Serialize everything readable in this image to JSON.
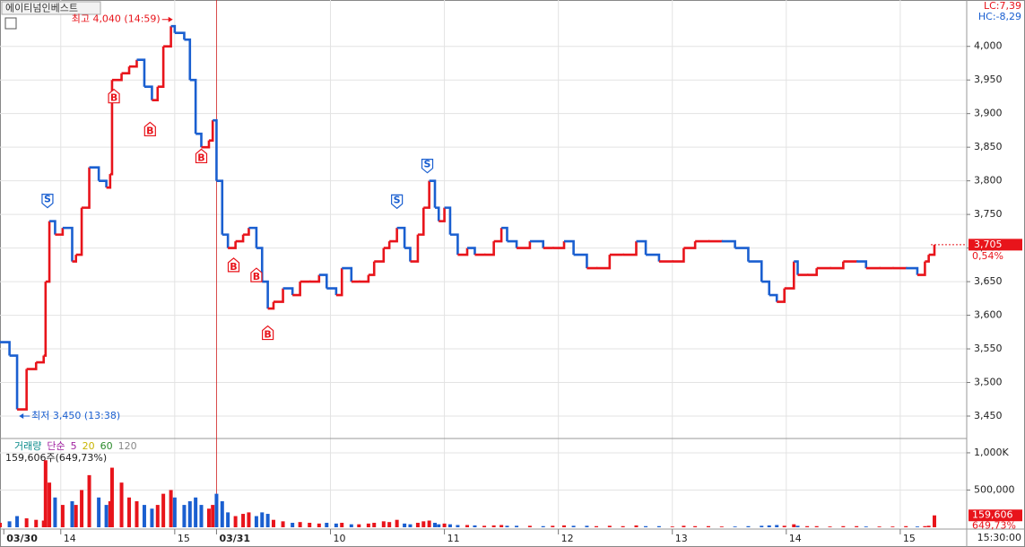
{
  "chart_data": {
    "type": "stock",
    "stock_name": "에이티넘인베스트",
    "lc_label": "LC:7,39",
    "hc_label": "HC:-8,29",
    "up_color": "#e8141b",
    "down_color": "#1a5fd0",
    "xlim": [
      0,
      509
    ],
    "xticks": [
      {
        "value": 2,
        "label": "03/30"
      },
      {
        "value": 32,
        "label": "14"
      },
      {
        "value": 92,
        "label": "15"
      },
      {
        "value": 114,
        "label": "03/31"
      },
      {
        "value": 174,
        "label": "10"
      },
      {
        "value": 234,
        "label": "11"
      },
      {
        "value": 294,
        "label": "12"
      },
      {
        "value": 354,
        "label": "13"
      },
      {
        "value": 414,
        "label": "14"
      },
      {
        "value": 474,
        "label": "15"
      }
    ],
    "time_label": "15:30:00",
    "ylim": [
      3418,
      4069
    ],
    "yticks": [
      {
        "value": 3450,
        "label": "3,450"
      },
      {
        "value": 3500,
        "label": "3,500"
      },
      {
        "value": 3550,
        "label": "3,550"
      },
      {
        "value": 3600,
        "label": "3,600"
      },
      {
        "value": 3650,
        "label": "3,650"
      },
      {
        "value": 3700,
        "label": "3,700"
      },
      {
        "value": 3750,
        "label": "3,750"
      },
      {
        "value": 3800,
        "label": "3,800"
      },
      {
        "value": 3850,
        "label": "3,850"
      },
      {
        "value": 3900,
        "label": "3,900"
      },
      {
        "value": 3950,
        "label": "3,950"
      },
      {
        "value": 4000,
        "label": "4,000"
      }
    ],
    "x": [
      0,
      5,
      9,
      14,
      19,
      23,
      24,
      26,
      29,
      33,
      38,
      40,
      43,
      47,
      52,
      56,
      58,
      59,
      64,
      68,
      72,
      76,
      80,
      83,
      86,
      90,
      92,
      97,
      100,
      103,
      106,
      110,
      112,
      114,
      117,
      120,
      124,
      128,
      131,
      135,
      138,
      141,
      144,
      149,
      154,
      158,
      163,
      168,
      172,
      177,
      180,
      185,
      189,
      194,
      197,
      202,
      205,
      209,
      213,
      216,
      220,
      223,
      226,
      229,
      231,
      234,
      237,
      241,
      246,
      250,
      255,
      260,
      264,
      267,
      272,
      279,
      286,
      291,
      297,
      302,
      309,
      314,
      321,
      328,
      335,
      340,
      347,
      354,
      360,
      366,
      373,
      380,
      387,
      394,
      401,
      405,
      409,
      413,
      418,
      420,
      425,
      430,
      437,
      444,
      451,
      456,
      463,
      470,
      477,
      483,
      487,
      489,
      492
    ],
    "values": [
      3560,
      3540,
      3460,
      3520,
      3530,
      3540,
      3650,
      3740,
      3720,
      3730,
      3680,
      3690,
      3760,
      3820,
      3800,
      3790,
      3810,
      3950,
      3960,
      3970,
      3980,
      3940,
      3920,
      3940,
      4000,
      4030,
      4020,
      4010,
      3950,
      3870,
      3850,
      3860,
      3890,
      3800,
      3720,
      3700,
      3710,
      3720,
      3730,
      3700,
      3650,
      3610,
      3620,
      3640,
      3630,
      3650,
      3650,
      3660,
      3640,
      3630,
      3670,
      3650,
      3650,
      3660,
      3680,
      3700,
      3710,
      3730,
      3700,
      3680,
      3720,
      3760,
      3800,
      3760,
      3740,
      3760,
      3720,
      3690,
      3700,
      3690,
      3690,
      3710,
      3730,
      3710,
      3700,
      3710,
      3700,
      3700,
      3710,
      3690,
      3670,
      3670,
      3690,
      3690,
      3710,
      3690,
      3680,
      3680,
      3700,
      3710,
      3710,
      3710,
      3700,
      3680,
      3650,
      3630,
      3620,
      3640,
      3680,
      3660,
      3660,
      3670,
      3670,
      3680,
      3680,
      3670,
      3670,
      3670,
      3670,
      3660,
      3680,
      3690,
      3705
    ],
    "current": {
      "value": 3705,
      "label": "3,705",
      "change": "0,54%"
    },
    "high": {
      "text": "최고 4,040 (14:59)",
      "x": 91,
      "value": 4040
    },
    "low": {
      "text": "최저 3,450 (13:38)",
      "x": 10,
      "value": 3450
    },
    "signals": [
      {
        "label": "S",
        "x": 25,
        "value": 3760
      },
      {
        "label": "B",
        "x": 60,
        "value": 3936
      },
      {
        "label": "B",
        "x": 79,
        "value": 3887
      },
      {
        "label": "B",
        "x": 106,
        "value": 3847
      },
      {
        "label": "B",
        "x": 123,
        "value": 3685
      },
      {
        "label": "B",
        "x": 135,
        "value": 3670
      },
      {
        "label": "B",
        "x": 141,
        "value": 3584
      },
      {
        "label": "S",
        "x": 209,
        "value": 3759
      },
      {
        "label": "S",
        "x": 225,
        "value": 3812
      }
    ],
    "volume": {
      "legend": [
        "거래량",
        "단순",
        "5",
        "20",
        "60",
        "120"
      ],
      "legend_colors": [
        "#0a8a8a",
        "#a020a0",
        "#a020a0",
        "#c8b400",
        "#2a8a2a",
        "#888888"
      ],
      "summary": "159,606주(649,73%)",
      "ylim": [
        0,
        1180000
      ],
      "yticks": [
        {
          "value": 1000000,
          "label": "1,000K"
        },
        {
          "value": 500000,
          "label": "500,000"
        }
      ],
      "values": [
        60000,
        80000,
        150000,
        120000,
        100000,
        90000,
        900000,
        600000,
        400000,
        300000,
        350000,
        300000,
        500000,
        700000,
        400000,
        300000,
        350000,
        800000,
        600000,
        400000,
        350000,
        300000,
        250000,
        300000,
        450000,
        500000,
        400000,
        300000,
        350000,
        400000,
        300000,
        250000,
        300000,
        450000,
        350000,
        200000,
        150000,
        180000,
        200000,
        150000,
        200000,
        180000,
        100000,
        80000,
        60000,
        70000,
        60000,
        50000,
        60000,
        50000,
        60000,
        40000,
        40000,
        50000,
        60000,
        80000,
        70000,
        100000,
        50000,
        40000,
        60000,
        80000,
        90000,
        60000,
        40000,
        50000,
        40000,
        30000,
        30000,
        25000,
        20000,
        25000,
        30000,
        20000,
        20000,
        20000,
        15000,
        20000,
        25000,
        20000,
        20000,
        15000,
        20000,
        15000,
        25000,
        15000,
        15000,
        10000,
        20000,
        15000,
        15000,
        10000,
        10000,
        15000,
        20000,
        25000,
        30000,
        20000,
        40000,
        20000,
        15000,
        15000,
        10000,
        15000,
        15000,
        10000,
        10000,
        10000,
        15000,
        10000,
        15000,
        20000,
        159606
      ],
      "current": {
        "value": 159606,
        "label": "159,606",
        "ratio": "649,73%"
      }
    }
  }
}
